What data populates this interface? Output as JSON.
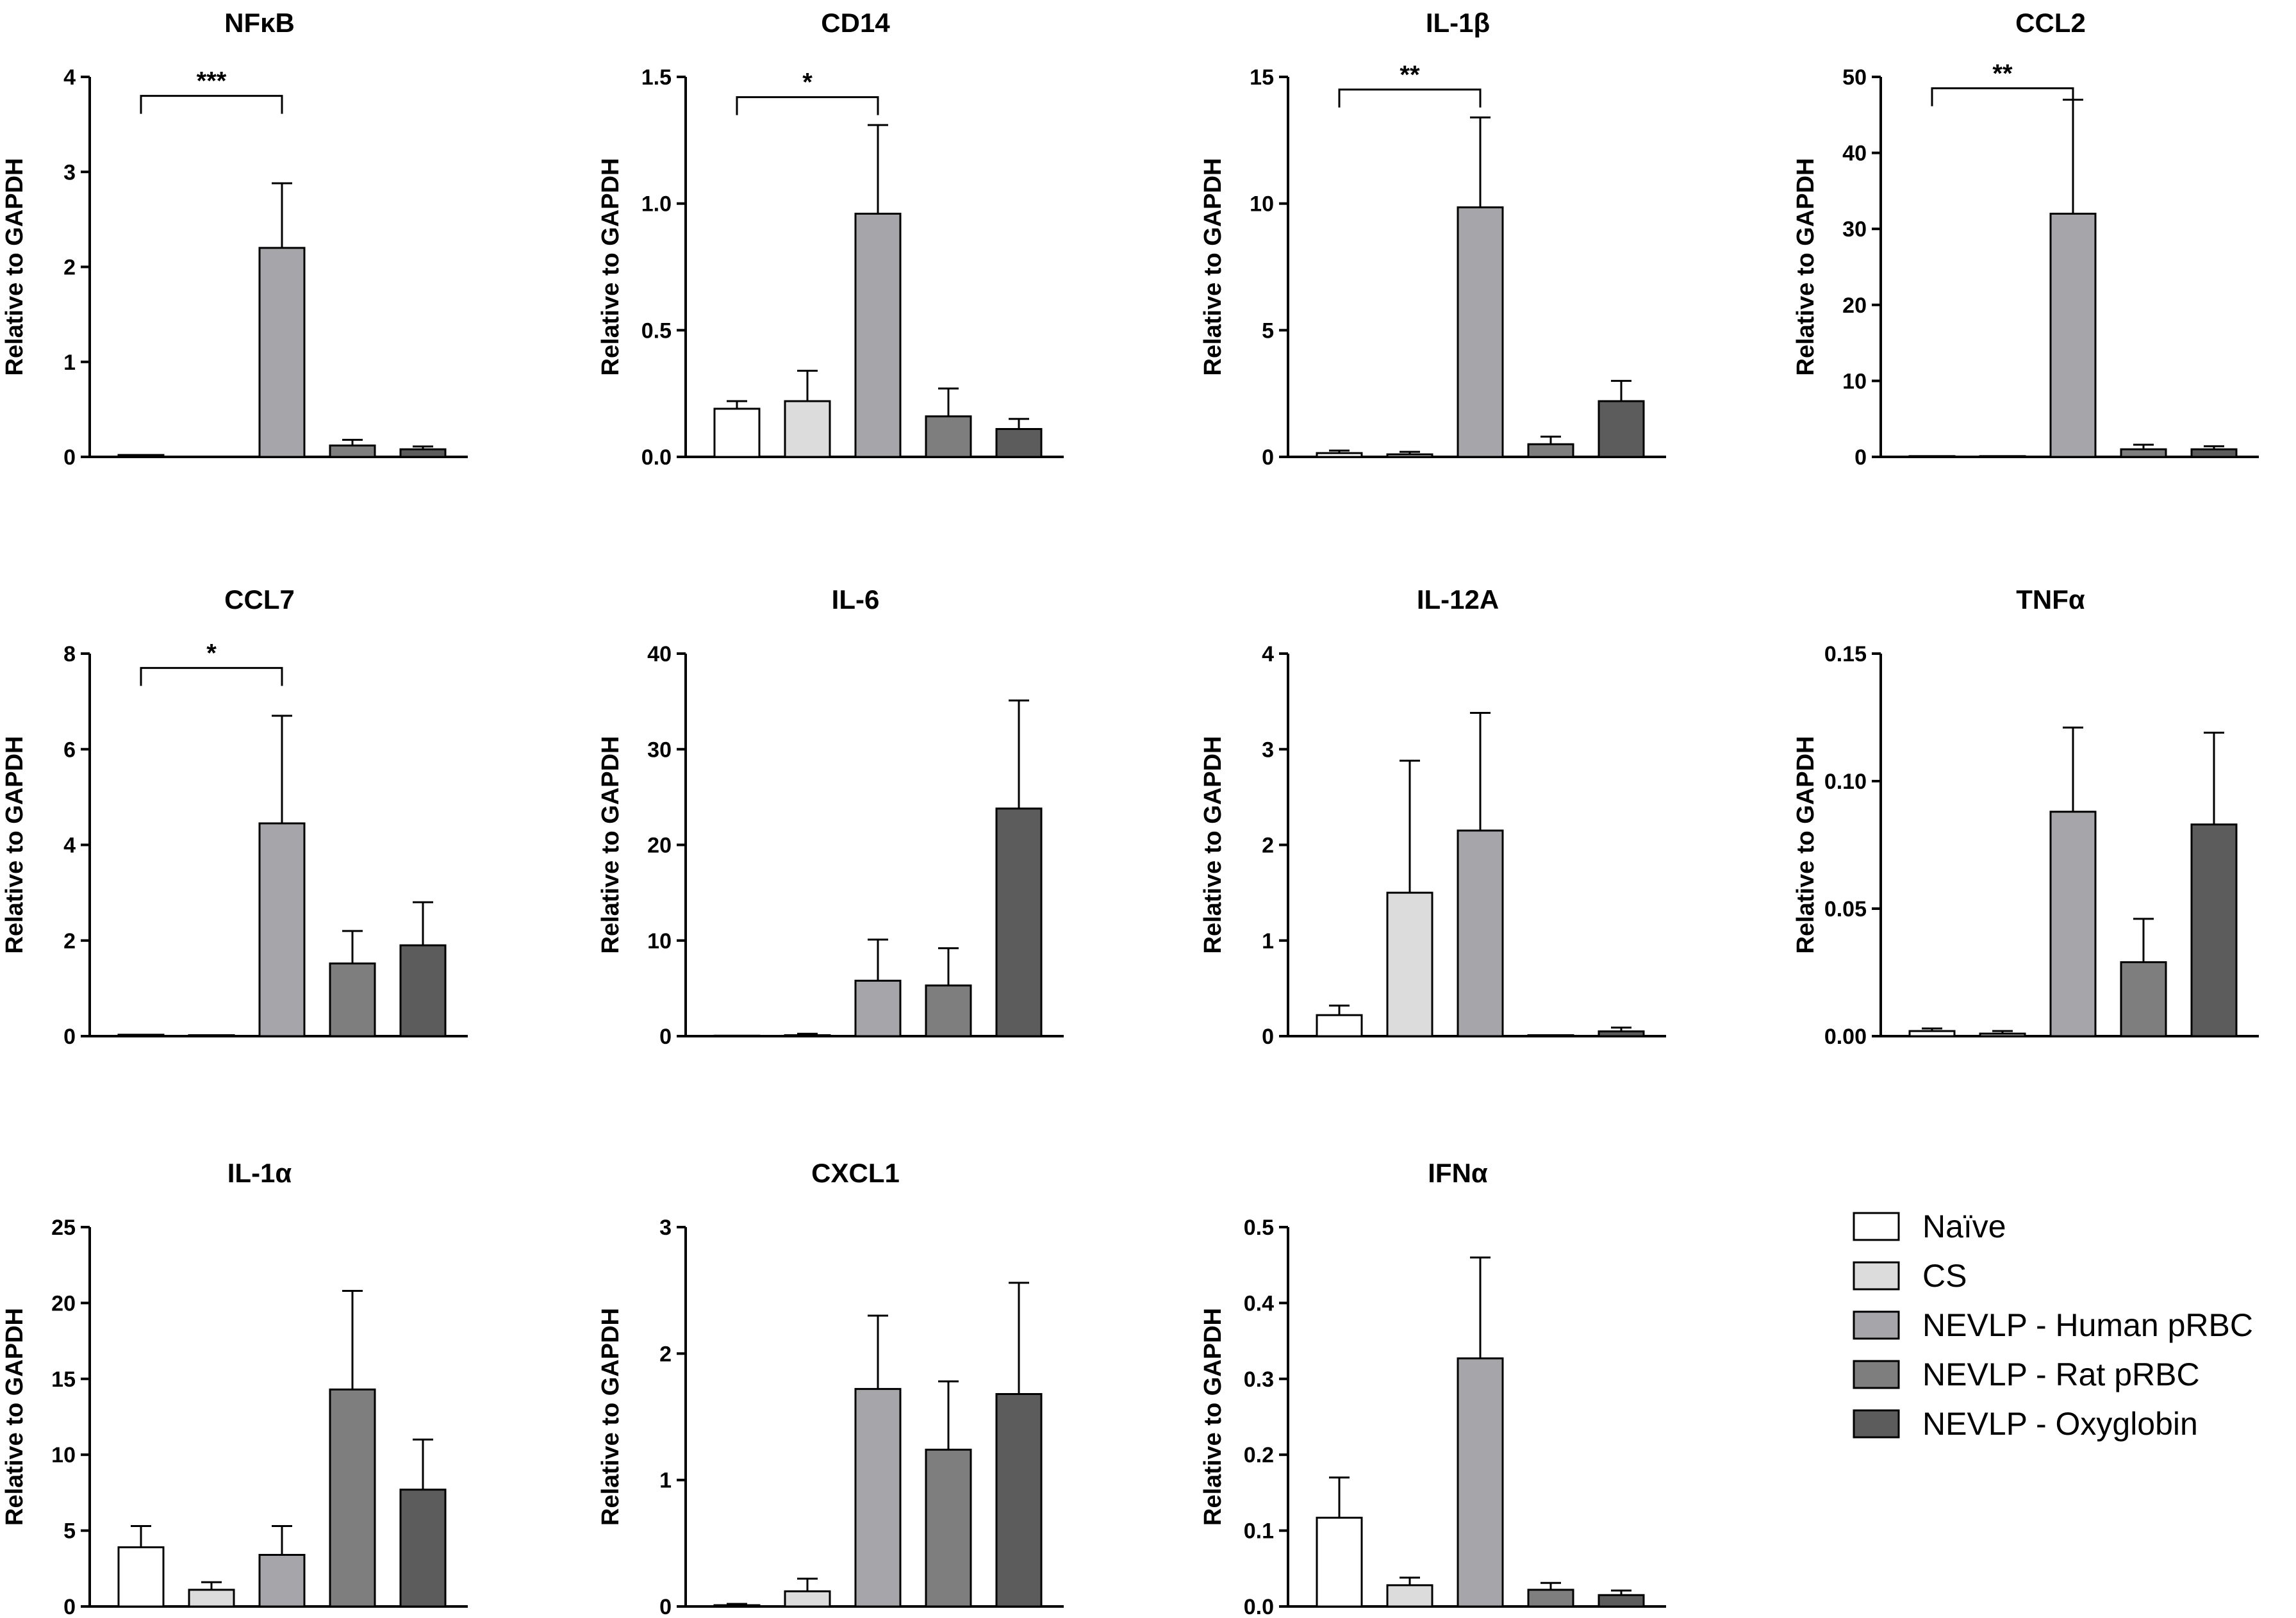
{
  "colors": {
    "naive": "#ffffff",
    "cs": "#dcdcdc",
    "human": "#a5a5aa",
    "rat": "#7e7e7e",
    "oxy": "#5c5c5c",
    "stroke": "#000000"
  },
  "legend": [
    {
      "label": "Naïve",
      "color": "#ffffff"
    },
    {
      "label": "CS",
      "color": "#dcdcdc"
    },
    {
      "label": "NEVLP - Human pRBC",
      "color": "#a5a5aa"
    },
    {
      "label": "NEVLP - Rat pRBC",
      "color": "#7e7e7e"
    },
    {
      "label": "NEVLP - Oxyglobin",
      "color": "#5c5c5c"
    }
  ],
  "chart_data": [
    {
      "type": "bar",
      "title": "NFκB",
      "ylabel": "Relative to GAPDH",
      "ylim": [
        0,
        4
      ],
      "ticks": [
        "0",
        "1",
        "2",
        "3",
        "4"
      ],
      "series": [
        {
          "name": "Naïve",
          "value": 0.02,
          "error": 0
        },
        {
          "name": "CS",
          "value": 0,
          "error": 0
        },
        {
          "name": "NEVLP - Human pRBC",
          "value": 2.2,
          "error": 0.68
        },
        {
          "name": "NEVLP - Rat pRBC",
          "value": 0.12,
          "error": 0.06
        },
        {
          "name": "NEVLP - Oxyglobin",
          "value": 0.08,
          "error": 0.03
        }
      ],
      "significance": {
        "from": 0,
        "to": 2,
        "label": "***",
        "level": 3.8
      }
    },
    {
      "type": "bar",
      "title": "CD14",
      "ylabel": "Relative to GAPDH",
      "ylim": [
        0,
        1.5
      ],
      "ticks": [
        "0.0",
        "0.5",
        "1.0",
        "1.5"
      ],
      "series": [
        {
          "name": "Naïve",
          "value": 0.19,
          "error": 0.03
        },
        {
          "name": "CS",
          "value": 0.22,
          "error": 0.12
        },
        {
          "name": "NEVLP - Human pRBC",
          "value": 0.96,
          "error": 0.35
        },
        {
          "name": "NEVLP - Rat pRBC",
          "value": 0.16,
          "error": 0.11
        },
        {
          "name": "NEVLP - Oxyglobin",
          "value": 0.11,
          "error": 0.04
        }
      ],
      "significance": {
        "from": 0,
        "to": 2,
        "label": "*",
        "level": 1.42
      }
    },
    {
      "type": "bar",
      "title": "IL-1β",
      "ylabel": "Relative to GAPDH",
      "ylim": [
        0,
        15
      ],
      "ticks": [
        "0",
        "5",
        "10",
        "15"
      ],
      "series": [
        {
          "name": "Naïve",
          "value": 0.15,
          "error": 0.1
        },
        {
          "name": "CS",
          "value": 0.1,
          "error": 0.1
        },
        {
          "name": "NEVLP - Human pRBC",
          "value": 9.85,
          "error": 3.55
        },
        {
          "name": "NEVLP - Rat pRBC",
          "value": 0.5,
          "error": 0.3
        },
        {
          "name": "NEVLP - Oxyglobin",
          "value": 2.2,
          "error": 0.8
        }
      ],
      "significance": {
        "from": 0,
        "to": 2,
        "label": "**",
        "level": 14.5
      }
    },
    {
      "type": "bar",
      "title": "CCL2",
      "ylabel": "Relative to GAPDH",
      "ylim": [
        0,
        50
      ],
      "ticks": [
        "0",
        "10",
        "20",
        "30",
        "40",
        "50"
      ],
      "series": [
        {
          "name": "Naïve",
          "value": 0.1,
          "error": 0
        },
        {
          "name": "CS",
          "value": 0.1,
          "error": 0
        },
        {
          "name": "NEVLP - Human pRBC",
          "value": 32,
          "error": 15
        },
        {
          "name": "NEVLP - Rat pRBC",
          "value": 1,
          "error": 0.6
        },
        {
          "name": "NEVLP - Oxyglobin",
          "value": 1,
          "error": 0.4
        }
      ],
      "significance": {
        "from": 0,
        "to": 2,
        "label": "**",
        "level": 48.5
      }
    },
    {
      "type": "bar",
      "title": "CCL7",
      "ylabel": "Relative to GAPDH",
      "ylim": [
        0,
        8
      ],
      "ticks": [
        "0",
        "2",
        "4",
        "6",
        "8"
      ],
      "series": [
        {
          "name": "Naïve",
          "value": 0.03,
          "error": 0
        },
        {
          "name": "CS",
          "value": 0.02,
          "error": 0
        },
        {
          "name": "NEVLP - Human pRBC",
          "value": 4.45,
          "error": 2.25
        },
        {
          "name": "NEVLP - Rat pRBC",
          "value": 1.52,
          "error": 0.68
        },
        {
          "name": "NEVLP - Oxyglobin",
          "value": 1.9,
          "error": 0.9
        }
      ],
      "significance": {
        "from": 0,
        "to": 2,
        "label": "*",
        "level": 7.7
      }
    },
    {
      "type": "bar",
      "title": "IL-6",
      "ylabel": "Relative to GAPDH",
      "ylim": [
        0,
        40
      ],
      "ticks": [
        "0",
        "10",
        "20",
        "30",
        "40"
      ],
      "series": [
        {
          "name": "Naïve",
          "value": 0.05,
          "error": 0
        },
        {
          "name": "CS",
          "value": 0.1,
          "error": 0.15
        },
        {
          "name": "NEVLP - Human pRBC",
          "value": 5.8,
          "error": 4.3
        },
        {
          "name": "NEVLP - Rat pRBC",
          "value": 5.3,
          "error": 3.9
        },
        {
          "name": "NEVLP - Oxyglobin",
          "value": 23.8,
          "error": 11.3
        }
      ]
    },
    {
      "type": "bar",
      "title": "IL-12A",
      "ylabel": "Relative to GAPDH",
      "ylim": [
        0,
        4
      ],
      "ticks": [
        "0",
        "1",
        "2",
        "3",
        "4"
      ],
      "series": [
        {
          "name": "Naïve",
          "value": 0.22,
          "error": 0.1
        },
        {
          "name": "CS",
          "value": 1.5,
          "error": 1.38
        },
        {
          "name": "NEVLP - Human pRBC",
          "value": 2.15,
          "error": 1.23
        },
        {
          "name": "NEVLP - Rat pRBC",
          "value": 0.01,
          "error": 0
        },
        {
          "name": "NEVLP - Oxyglobin",
          "value": 0.05,
          "error": 0.04
        }
      ]
    },
    {
      "type": "bar",
      "title": "TNFα",
      "ylabel": "Relative to GAPDH",
      "ylim": [
        0,
        0.15
      ],
      "ticks": [
        "0.00",
        "0.05",
        "0.10",
        "0.15"
      ],
      "series": [
        {
          "name": "Naïve",
          "value": 0.002,
          "error": 0.001
        },
        {
          "name": "CS",
          "value": 0.001,
          "error": 0.001
        },
        {
          "name": "NEVLP - Human pRBC",
          "value": 0.088,
          "error": 0.033
        },
        {
          "name": "NEVLP - Rat pRBC",
          "value": 0.029,
          "error": 0.017
        },
        {
          "name": "NEVLP - Oxyglobin",
          "value": 0.083,
          "error": 0.036
        }
      ]
    },
    {
      "type": "bar",
      "title": "IL-1α",
      "ylabel": "Relative to GAPDH",
      "ylim": [
        0,
        25
      ],
      "ticks": [
        "0",
        "5",
        "10",
        "15",
        "20",
        "25"
      ],
      "series": [
        {
          "name": "Naïve",
          "value": 3.9,
          "error": 1.4
        },
        {
          "name": "CS",
          "value": 1.1,
          "error": 0.5
        },
        {
          "name": "NEVLP - Human pRBC",
          "value": 3.4,
          "error": 1.9
        },
        {
          "name": "NEVLP - Rat pRBC",
          "value": 14.3,
          "error": 6.5
        },
        {
          "name": "NEVLP - Oxyglobin",
          "value": 7.7,
          "error": 3.3
        }
      ]
    },
    {
      "type": "bar",
      "title": "CXCL1",
      "ylabel": "Relative to GAPDH",
      "ylim": [
        0,
        3
      ],
      "ticks": [
        "0",
        "1",
        "2",
        "3"
      ],
      "series": [
        {
          "name": "Naïve",
          "value": 0.01,
          "error": 0.01
        },
        {
          "name": "CS",
          "value": 0.12,
          "error": 0.1
        },
        {
          "name": "NEVLP - Human pRBC",
          "value": 1.72,
          "error": 0.58
        },
        {
          "name": "NEVLP - Rat pRBC",
          "value": 1.24,
          "error": 0.54
        },
        {
          "name": "NEVLP - Oxyglobin",
          "value": 1.68,
          "error": 0.88
        }
      ]
    },
    {
      "type": "bar",
      "title": "IFNα",
      "ylabel": "Relative to GAPDH",
      "ylim": [
        0,
        0.5
      ],
      "ticks": [
        "0.0",
        "0.1",
        "0.2",
        "0.3",
        "0.4",
        "0.5"
      ],
      "series": [
        {
          "name": "Naïve",
          "value": 0.117,
          "error": 0.053
        },
        {
          "name": "CS",
          "value": 0.028,
          "error": 0.01
        },
        {
          "name": "NEVLP - Human pRBC",
          "value": 0.327,
          "error": 0.133
        },
        {
          "name": "NEVLP - Rat pRBC",
          "value": 0.022,
          "error": 0.009
        },
        {
          "name": "NEVLP - Oxyglobin",
          "value": 0.015,
          "error": 0.006
        }
      ]
    }
  ]
}
